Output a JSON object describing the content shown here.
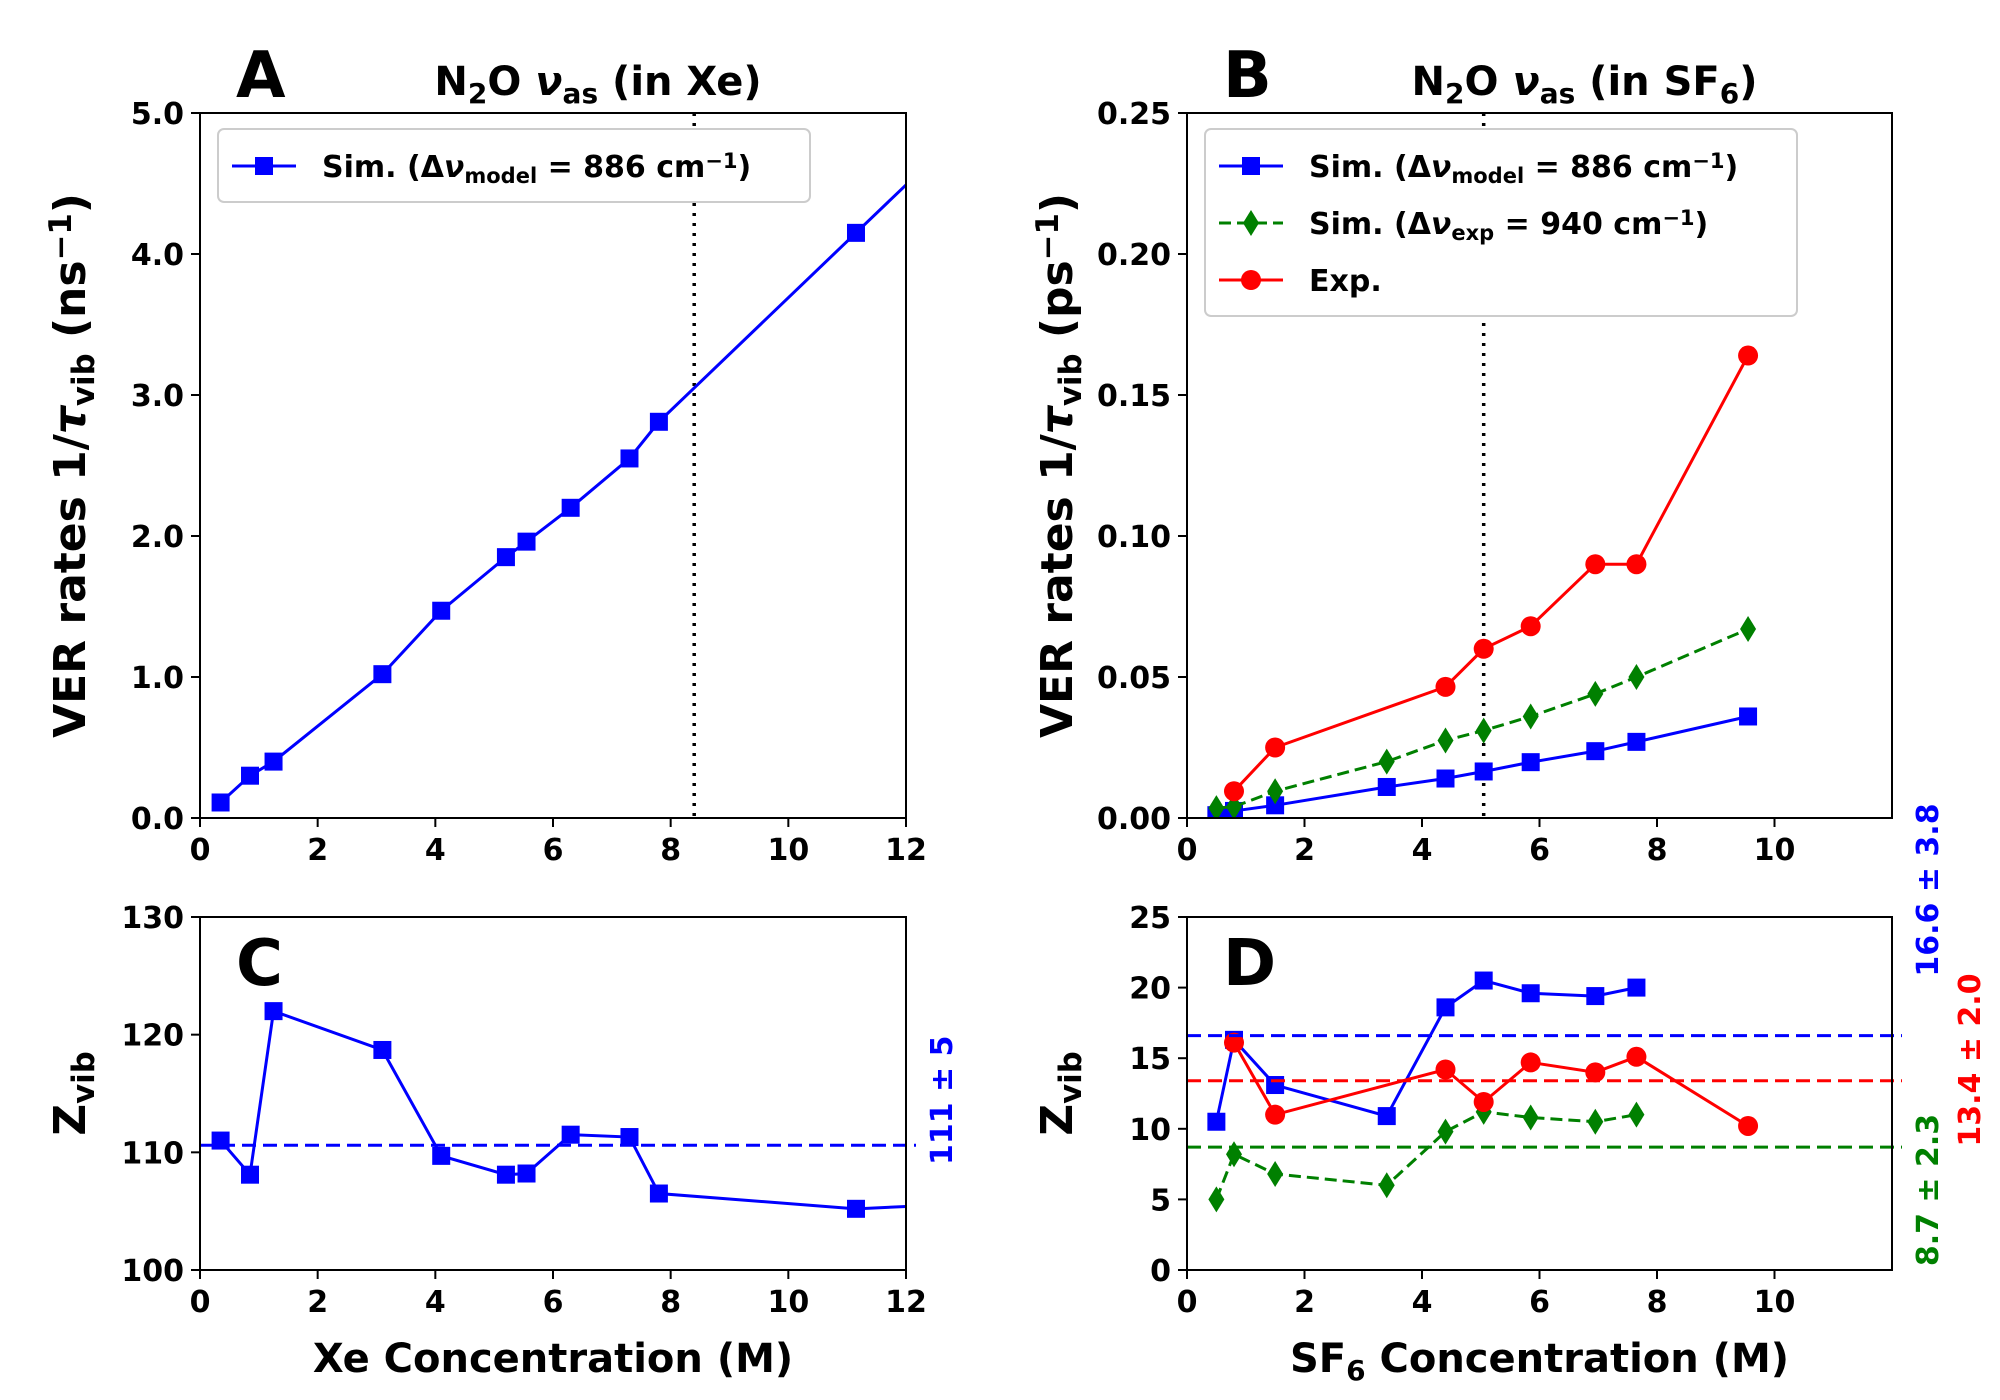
{
  "chart_data": [
    {
      "panel": "A",
      "type": "line",
      "title": {
        "pre": "N",
        "sub1": "2",
        "mid": "O ",
        "nu": "ν",
        "sub2": "as",
        "post": " (in Xe)"
      },
      "ylabel": {
        "pre": "VER rates 1/",
        "tau": "τ",
        "sub": "vib",
        "post": " (ns",
        "sup": "−1",
        "end": ")"
      },
      "xlabel": "",
      "xlim": [
        0,
        12
      ],
      "ylim": [
        0,
        5
      ],
      "xticks": [
        0,
        2,
        4,
        6,
        8,
        10,
        12
      ],
      "xtick_labels": [
        "0",
        "2",
        "4",
        "6",
        "8",
        "10",
        "12"
      ],
      "yticks": [
        0,
        1,
        2,
        3,
        4,
        5
      ],
      "ytick_labels": [
        "0.0",
        "1.0",
        "2.0",
        "3.0",
        "4.0",
        "5.0"
      ],
      "vline": 8.4,
      "legend": [
        {
          "pre": "Sim. (Δ",
          "nu": "ν",
          "sub": "model",
          "post": " = 886 cm",
          "sup": "−1",
          "end": ")"
        }
      ],
      "series": [
        {
          "name": "Sim. (Δν_model = 886 cm−1)",
          "color": "#0000ff",
          "marker": "square",
          "dashed": false,
          "x": [
            0.35,
            0.85,
            1.25,
            3.1,
            4.1,
            5.2,
            5.55,
            6.3,
            7.3,
            7.8,
            11.15
          ],
          "y": [
            0.11,
            0.3,
            0.4,
            1.02,
            1.47,
            1.85,
            1.96,
            2.2,
            2.55,
            2.81,
            4.15
          ],
          "extend_to": [
            12,
            4.49
          ]
        }
      ]
    },
    {
      "panel": "B",
      "type": "line",
      "title": {
        "pre": "N",
        "sub1": "2",
        "mid": "O ",
        "nu": "ν",
        "sub2": "as",
        "post": " (in SF",
        "sub3": "6",
        "end": ")"
      },
      "ylabel": {
        "pre": "VER rates 1/",
        "tau": "τ",
        "sub": "vib",
        "post": " (ps",
        "sup": "−1",
        "end": ")"
      },
      "xlabel": "",
      "xlim": [
        0,
        12
      ],
      "ylim": [
        0,
        0.25
      ],
      "xticks": [
        0,
        2,
        4,
        6,
        8,
        10
      ],
      "xtick_labels": [
        "0",
        "2",
        "4",
        "6",
        "8",
        "10"
      ],
      "yticks": [
        0,
        0.05,
        0.1,
        0.15,
        0.2,
        0.25
      ],
      "ytick_labels": [
        "0.00",
        "0.05",
        "0.10",
        "0.15",
        "0.20",
        "0.25"
      ],
      "vline": 5.05,
      "legend": [
        {
          "pre": "Sim. (Δ",
          "nu": "ν",
          "sub": "model",
          "post": " = 886 cm",
          "sup": "−1",
          "end": ")"
        },
        {
          "pre": "Sim. (Δ",
          "nu": "ν",
          "sub": "exp",
          "post": " = 940 cm",
          "sup": "−1",
          "end": ")"
        },
        {
          "pre": "Exp.",
          "nu": "",
          "sub": "",
          "post": "",
          "sup": "",
          "end": ""
        }
      ],
      "series": [
        {
          "name": "Sim. (Δν_model = 886 cm−1)",
          "color": "#0000ff",
          "marker": "square",
          "dashed": false,
          "x": [
            0.5,
            0.8,
            1.5,
            3.4,
            4.4,
            5.05,
            5.85,
            6.95,
            7.65,
            9.55
          ],
          "y": [
            0.001,
            0.0025,
            0.0045,
            0.011,
            0.014,
            0.0165,
            0.0198,
            0.0237,
            0.027,
            0.036
          ]
        },
        {
          "name": "Sim. (Δν_exp = 940 cm−1)",
          "color": "#008000",
          "marker": "diamond",
          "dashed": true,
          "x": [
            0.5,
            0.8,
            1.5,
            3.4,
            4.4,
            5.05,
            5.85,
            6.95,
            7.65,
            9.55
          ],
          "y": [
            0.0035,
            0.004,
            0.0095,
            0.02,
            0.0275,
            0.031,
            0.036,
            0.044,
            0.05,
            0.067
          ]
        },
        {
          "name": "Exp.",
          "color": "#ff0000",
          "marker": "circle",
          "dashed": false,
          "x": [
            0.8,
            1.5,
            4.4,
            5.05,
            5.85,
            6.95,
            7.65,
            9.55
          ],
          "y": [
            0.0095,
            0.025,
            0.0465,
            0.06,
            0.068,
            0.09,
            0.09,
            0.164
          ]
        }
      ]
    },
    {
      "panel": "C",
      "type": "line",
      "title": null,
      "ylabel": {
        "pre": "Z",
        "sub": "vib"
      },
      "xlabel": "Xe Concentration (M)",
      "xlim": [
        0,
        12
      ],
      "ylim": [
        100,
        130
      ],
      "xticks": [
        0,
        2,
        4,
        6,
        8,
        10,
        12
      ],
      "xtick_labels": [
        "0",
        "2",
        "4",
        "6",
        "8",
        "10",
        "12"
      ],
      "yticks": [
        100,
        110,
        120,
        130
      ],
      "ytick_labels": [
        "100",
        "110",
        "120",
        "130"
      ],
      "hlines": [
        {
          "y": 110.6,
          "color": "#0000ff",
          "label": "111 ± 5"
        }
      ],
      "series": [
        {
          "name": "Sim.",
          "color": "#0000ff",
          "marker": "square",
          "dashed": false,
          "x": [
            0.35,
            0.85,
            1.25,
            3.1,
            4.1,
            5.2,
            5.55,
            6.3,
            7.3,
            7.8,
            11.15
          ],
          "y": [
            111.0,
            108.1,
            122.0,
            118.7,
            109.7,
            108.1,
            108.2,
            111.5,
            111.3,
            106.5,
            105.2
          ],
          "extend_to": [
            12,
            105.4
          ]
        }
      ]
    },
    {
      "panel": "D",
      "type": "line",
      "title": null,
      "ylabel": {
        "pre": "Z",
        "sub": "vib"
      },
      "xlabel": {
        "pre": "SF",
        "sub": "6",
        "post": " Concentration (M)"
      },
      "xlim": [
        0,
        12
      ],
      "ylim": [
        0,
        25
      ],
      "xticks": [
        0,
        2,
        4,
        6,
        8,
        10
      ],
      "xtick_labels": [
        "0",
        "2",
        "4",
        "6",
        "8",
        "10"
      ],
      "yticks": [
        0,
        5,
        10,
        15,
        20,
        25
      ],
      "ytick_labels": [
        "0",
        "5",
        "10",
        "15",
        "20",
        "25"
      ],
      "hlines": [
        {
          "y": 16.6,
          "color": "#0000ff",
          "label": "16.6 ± 3.8"
        },
        {
          "y": 13.4,
          "color": "#ff0000",
          "label": "13.4 ± 2.0"
        },
        {
          "y": 8.7,
          "color": "#008000",
          "label": "8.7 ± 2.3"
        }
      ],
      "series": [
        {
          "name": "Sim. model",
          "color": "#0000ff",
          "marker": "square",
          "dashed": false,
          "x": [
            0.5,
            0.8,
            1.5,
            3.4,
            4.4,
            5.05,
            5.85,
            6.95,
            7.65
          ],
          "y": [
            10.5,
            16.3,
            13.1,
            10.9,
            18.6,
            20.5,
            19.6,
            19.4,
            20.0
          ]
        },
        {
          "name": "Sim. exp",
          "color": "#008000",
          "marker": "diamond",
          "dashed": true,
          "x": [
            0.5,
            0.8,
            1.5,
            3.4,
            4.4,
            5.05,
            5.85,
            6.95,
            7.65
          ],
          "y": [
            5.0,
            8.2,
            6.8,
            6.0,
            9.8,
            11.2,
            10.8,
            10.5,
            11.0
          ]
        },
        {
          "name": "Exp.",
          "color": "#ff0000",
          "marker": "circle",
          "dashed": false,
          "x": [
            0.8,
            1.5,
            4.4,
            5.05,
            5.85,
            6.95,
            7.65,
            9.55
          ],
          "y": [
            16.1,
            11.0,
            14.2,
            11.9,
            14.7,
            14.0,
            15.1,
            10.2
          ]
        }
      ]
    }
  ]
}
